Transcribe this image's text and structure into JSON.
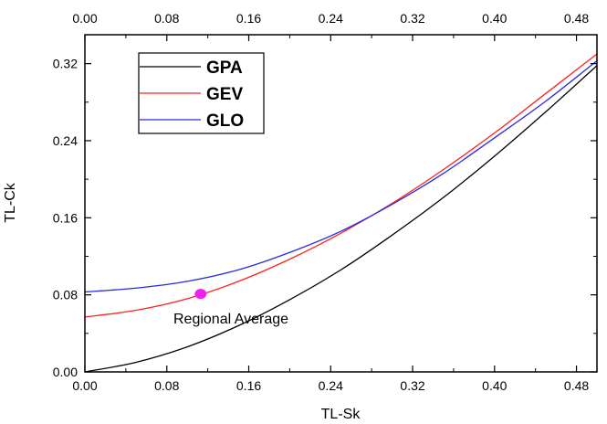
{
  "chart_data": {
    "type": "line",
    "xlabel": "TL-Sk",
    "ylabel": "TL-Ck",
    "xlim": [
      0,
      0.5
    ],
    "ylim": [
      0,
      0.35
    ],
    "x_ticks": [
      "0.00",
      "0.08",
      "0.16",
      "0.24",
      "0.32",
      "0.40",
      "0.48"
    ],
    "y_ticks": [
      "0.00",
      "0.08",
      "0.16",
      "0.24",
      "0.32"
    ],
    "grid": false,
    "legend_position": "top-left",
    "series": [
      {
        "name": "GPA",
        "color": "#000000",
        "x": [
          0.0,
          0.05,
          0.1,
          0.15,
          0.2,
          0.25,
          0.3,
          0.35,
          0.4,
          0.45,
          0.5
        ],
        "y": [
          0.0,
          0.01,
          0.026,
          0.048,
          0.075,
          0.106,
          0.142,
          0.181,
          0.224,
          0.27,
          0.318
        ]
      },
      {
        "name": "GEV",
        "color": "#ff2020",
        "x": [
          0.0,
          0.05,
          0.1,
          0.15,
          0.2,
          0.25,
          0.3,
          0.35,
          0.4,
          0.45,
          0.5
        ],
        "y": [
          0.057,
          0.064,
          0.076,
          0.094,
          0.117,
          0.144,
          0.175,
          0.21,
          0.248,
          0.289,
          0.33
        ]
      },
      {
        "name": "GLO",
        "color": "#2a2ae0",
        "x": [
          0.0,
          0.05,
          0.1,
          0.15,
          0.2,
          0.25,
          0.3,
          0.35,
          0.4,
          0.45,
          0.5
        ],
        "y": [
          0.083,
          0.087,
          0.094,
          0.106,
          0.124,
          0.146,
          0.174,
          0.206,
          0.243,
          0.281,
          0.323
        ]
      }
    ],
    "points": [
      {
        "label": "Regional Average",
        "x": 0.113,
        "y": 0.081,
        "color": "#ee22ee"
      }
    ]
  }
}
